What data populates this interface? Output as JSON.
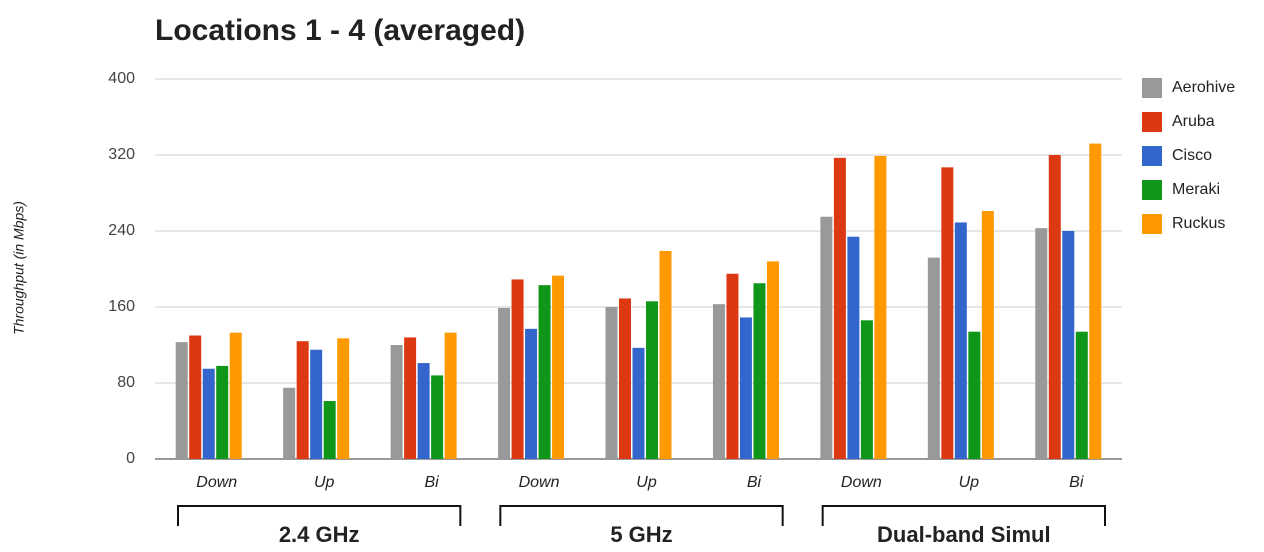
{
  "chart_data": {
    "type": "bar",
    "title": "Locations 1 - 4 (averaged)",
    "y_label": "Throughput (in Mbps)",
    "categories": [
      "Down",
      "Up",
      "Bi",
      "Down",
      "Up",
      "Bi",
      "Down",
      "Up",
      "Bi"
    ],
    "groups": [
      "2.4 GHz",
      "5 GHz",
      "Dual-band Simul"
    ],
    "series": [
      {
        "name": "Aerohive",
        "color": "#999999",
        "values": [
          123,
          75,
          120,
          159,
          160,
          163,
          255,
          212,
          243
        ]
      },
      {
        "name": "Aruba",
        "color": "#dc3912",
        "values": [
          130,
          124,
          128,
          189,
          169,
          195,
          317,
          307,
          320
        ]
      },
      {
        "name": "Cisco",
        "color": "#3366cc",
        "values": [
          95,
          115,
          101,
          137,
          117,
          149,
          234,
          249,
          240
        ]
      },
      {
        "name": "Meraki",
        "color": "#109618",
        "values": [
          98,
          61,
          88,
          183,
          166,
          185,
          146,
          134,
          134
        ]
      },
      {
        "name": "Ruckus",
        "color": "#ff9900",
        "values": [
          133,
          127,
          133,
          193,
          219,
          208,
          319,
          261,
          332
        ]
      }
    ],
    "ylim": [
      0,
      400
    ],
    "yticks": [
      0,
      80,
      160,
      240,
      320,
      400
    ],
    "grid": true,
    "legend": "right"
  }
}
